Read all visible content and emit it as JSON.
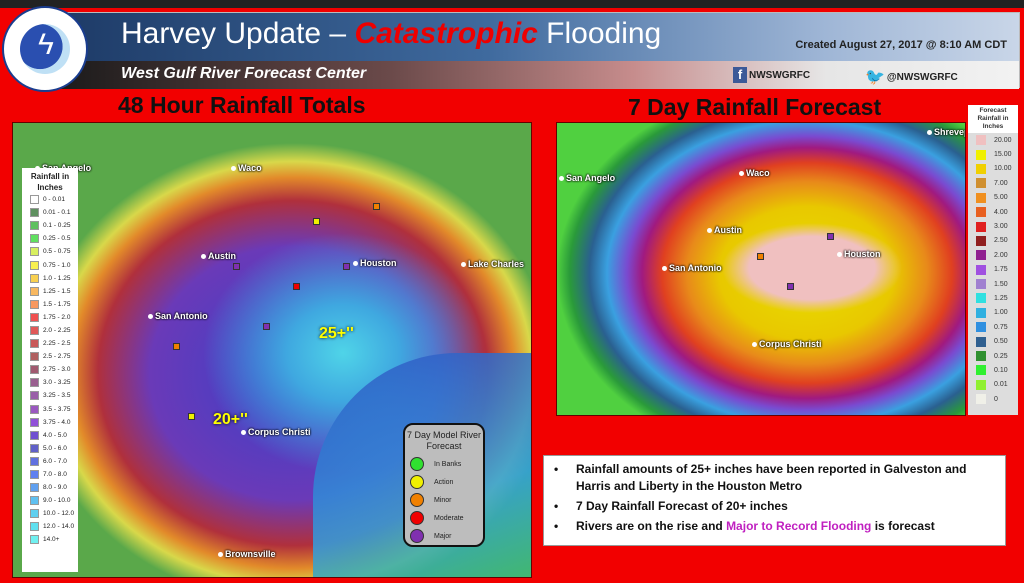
{
  "header": {
    "title_prefix": "Harvey Update – ",
    "title_emphasis": "Catastrophic",
    "title_suffix": " Flooding",
    "created": "Created August  27, 2017 @ 8:10 AM CDT",
    "subtitle": "West Gulf River Forecast Center",
    "facebook": "NWSWGRFC",
    "twitter": "@NWSWGRFC",
    "logo_text": "NATIONAL WEATHER SERVICE"
  },
  "left": {
    "heading": "48 Hour Rainfall Totals",
    "legend_title": "Rainfall in Inches",
    "legend": [
      {
        "label": "0 - 0.01",
        "color": "#ffffff"
      },
      {
        "label": "0.01 - 0.1",
        "color": "#5f9060"
      },
      {
        "label": "0.1 - 0.25",
        "color": "#5fc060"
      },
      {
        "label": "0.25 - 0.5",
        "color": "#60e060"
      },
      {
        "label": "0.5 - 0.75",
        "color": "#d8f060"
      },
      {
        "label": "0.75 - 1.0",
        "color": "#f8f050"
      },
      {
        "label": "1.0 - 1.25",
        "color": "#f8d050"
      },
      {
        "label": "1.25 - 1.5",
        "color": "#f8b860"
      },
      {
        "label": "1.5 - 1.75",
        "color": "#f89860"
      },
      {
        "label": "1.75 - 2.0",
        "color": "#f05050"
      },
      {
        "label": "2.0 - 2.25",
        "color": "#e05858"
      },
      {
        "label": "2.25 - 2.5",
        "color": "#c85858"
      },
      {
        "label": "2.5 - 2.75",
        "color": "#b06060"
      },
      {
        "label": "2.75 - 3.0",
        "color": "#a05a70"
      },
      {
        "label": "3.0 - 3.25",
        "color": "#9a6090"
      },
      {
        "label": "3.25 - 3.5",
        "color": "#9a60a8"
      },
      {
        "label": "3.5 - 3.75",
        "color": "#9a58c0"
      },
      {
        "label": "3.75 - 4.0",
        "color": "#9050d8"
      },
      {
        "label": "4.0 - 5.0",
        "color": "#7050d0"
      },
      {
        "label": "5.0 - 6.0",
        "color": "#6060c8"
      },
      {
        "label": "6.0 - 7.0",
        "color": "#6070e0"
      },
      {
        "label": "7.0 - 8.0",
        "color": "#6080f0"
      },
      {
        "label": "8.0 - 9.0",
        "color": "#60a0f0"
      },
      {
        "label": "9.0 - 10.0",
        "color": "#60c0f0"
      },
      {
        "label": "10.0 - 12.0",
        "color": "#60d0f0"
      },
      {
        "label": "12.0 - 14.0",
        "color": "#60e0f0"
      },
      {
        "label": "14.0+",
        "color": "#70f0f0"
      }
    ],
    "cities": [
      "San Angelo",
      "Waco",
      "Austin",
      "San Antonio",
      "Houston",
      "Lake Charles",
      "Corpus Christi",
      "Brownsville"
    ],
    "annotations": [
      "25+''",
      "20+''"
    ],
    "river_forecast": {
      "title": "7 Day Model River Forecast",
      "items": [
        {
          "label": "In Banks",
          "color": "#30e030"
        },
        {
          "label": "Action",
          "color": "#f0f000"
        },
        {
          "label": "Minor",
          "color": "#f08000"
        },
        {
          "label": "Moderate",
          "color": "#f00000"
        },
        {
          "label": "Major",
          "color": "#8030b0"
        }
      ]
    }
  },
  "right": {
    "heading": "7 Day Rainfall Forecast",
    "legend_title": "Forecast Rainfall in Inches",
    "legend": [
      {
        "label": "20.00",
        "color": "#f0c0c0"
      },
      {
        "label": "15.00",
        "color": "#f0f000"
      },
      {
        "label": "10.00",
        "color": "#f0d000"
      },
      {
        "label": "7.00",
        "color": "#d09030"
      },
      {
        "label": "5.00",
        "color": "#f09020"
      },
      {
        "label": "4.00",
        "color": "#e86020"
      },
      {
        "label": "3.00",
        "color": "#e02020"
      },
      {
        "label": "2.50",
        "color": "#902020"
      },
      {
        "label": "2.00",
        "color": "#902090"
      },
      {
        "label": "1.75",
        "color": "#a050e0"
      },
      {
        "label": "1.50",
        "color": "#a080d0"
      },
      {
        "label": "1.25",
        "color": "#30e0e0"
      },
      {
        "label": "1.00",
        "color": "#30b0e0"
      },
      {
        "label": "0.75",
        "color": "#3090e0"
      },
      {
        "label": "0.50",
        "color": "#306090"
      },
      {
        "label": "0.25",
        "color": "#309030"
      },
      {
        "label": "0.10",
        "color": "#30f030"
      },
      {
        "label": "0.01",
        "color": "#90f030"
      },
      {
        "label": "0",
        "color": "#f0f0e8"
      }
    ],
    "cities": [
      "Shreveport",
      "Waco",
      "San Angelo",
      "Austin",
      "San Antonio",
      "Houston",
      "Corpus Christi"
    ]
  },
  "bullets": [
    {
      "text": "Rainfall amounts of 25+ inches have been reported in Galveston and Harris and Liberty in the Houston Metro"
    },
    {
      "text": "7 Day Rainfall Forecast of 20+ inches"
    },
    {
      "pre": "Rivers are on the rise and ",
      "highlight": "Major to Record Flooding",
      "post": " is forecast"
    }
  ]
}
